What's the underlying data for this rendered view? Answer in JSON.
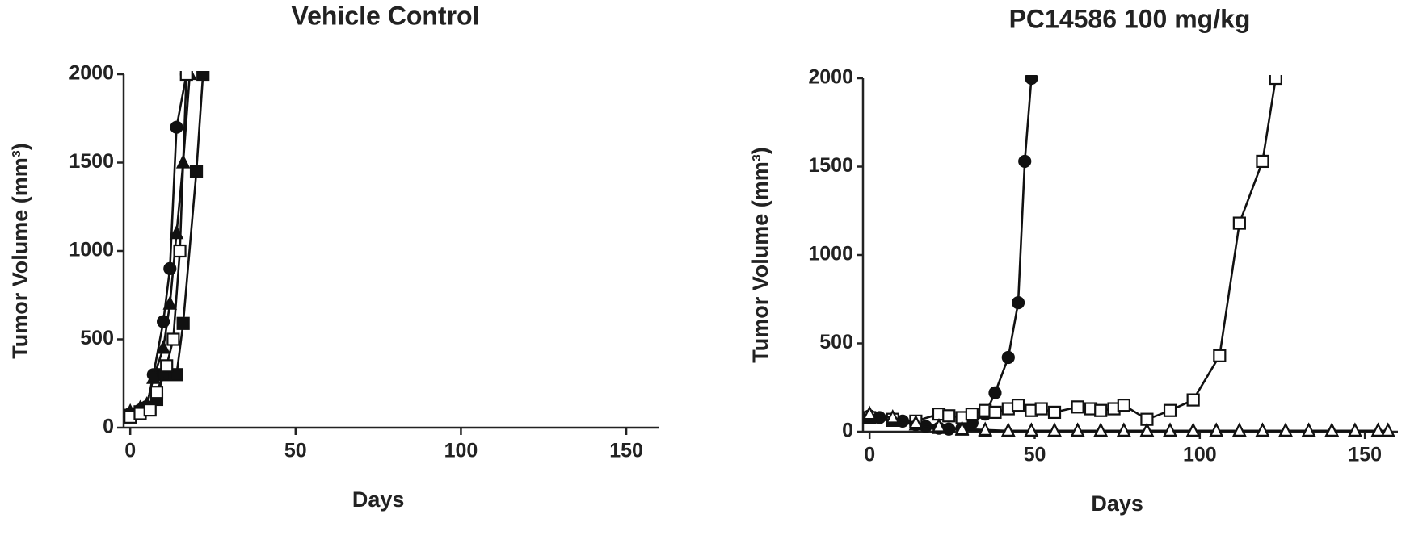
{
  "chart_data": [
    {
      "type": "line",
      "title": "Vehicle Control",
      "x_label": "Days",
      "y_label": "Tumor Volume (mm³)",
      "xlim": [
        -2,
        160
      ],
      "xticks": [
        0,
        50,
        100,
        150
      ],
      "ylim": [
        0,
        2000
      ],
      "yticks": [
        0,
        500,
        1000,
        1500,
        2000
      ],
      "series": [
        {
          "marker": "circle",
          "color": "#111111",
          "x": [
            0,
            3,
            5,
            7,
            10,
            12,
            14,
            17
          ],
          "values": [
            80,
            100,
            120,
            300,
            600,
            900,
            1700,
            2000
          ]
        },
        {
          "marker": "square",
          "color": "#111111",
          "x": [
            0,
            3,
            5,
            8,
            10,
            14,
            16,
            20,
            22
          ],
          "values": [
            70,
            90,
            110,
            160,
            300,
            300,
            590,
            1450,
            2000
          ]
        },
        {
          "marker": "triangle",
          "color": "#111111",
          "x": [
            0,
            3,
            5,
            7,
            10,
            12,
            14,
            16,
            18
          ],
          "values": [
            90,
            110,
            130,
            280,
            450,
            700,
            1100,
            1500,
            2000
          ]
        },
        {
          "marker": "open-square",
          "color": "#111111",
          "x": [
            0,
            3,
            6,
            8,
            11,
            13,
            15,
            17
          ],
          "values": [
            60,
            80,
            100,
            200,
            350,
            500,
            1000,
            2000
          ]
        }
      ]
    },
    {
      "type": "line",
      "title": "PC14586 100 mg/kg",
      "x_label": "Days",
      "y_label": "Tumor Volume (mm³)",
      "xlim": [
        -2,
        160
      ],
      "xticks": [
        0,
        50,
        100,
        150
      ],
      "ylim": [
        0,
        2000
      ],
      "yticks": [
        0,
        500,
        1000,
        1500,
        2000
      ],
      "series": [
        {
          "marker": "circle",
          "color": "#111111",
          "x": [
            0,
            3,
            7,
            10,
            14,
            17,
            21,
            24,
            28,
            31,
            35,
            38,
            42,
            45,
            47,
            49
          ],
          "values": [
            90,
            80,
            70,
            60,
            40,
            30,
            20,
            15,
            20,
            50,
            100,
            220,
            420,
            730,
            1530,
            2000
          ]
        },
        {
          "marker": "open-square",
          "color": "#111111",
          "x": [
            0,
            7,
            14,
            21,
            24,
            28,
            31,
            35,
            38,
            42,
            45,
            49,
            52,
            56,
            63,
            67,
            70,
            74,
            77,
            84,
            91,
            98,
            106,
            112,
            119,
            123
          ],
          "values": [
            80,
            70,
            60,
            100,
            90,
            80,
            100,
            120,
            110,
            130,
            150,
            120,
            130,
            110,
            140,
            130,
            120,
            130,
            150,
            70,
            120,
            180,
            430,
            1180,
            1530,
            2000
          ]
        },
        {
          "marker": "triangle",
          "color": "#111111",
          "x": [
            0,
            7,
            14,
            21,
            28,
            35,
            42,
            49,
            56,
            63,
            70,
            77,
            84,
            91,
            98,
            105,
            112,
            119,
            126,
            133,
            140,
            147,
            154,
            157
          ],
          "values": [
            80,
            60,
            40,
            20,
            10,
            5,
            5,
            5,
            5,
            5,
            5,
            5,
            5,
            5,
            5,
            5,
            5,
            5,
            5,
            5,
            5,
            5,
            5,
            5
          ]
        },
        {
          "marker": "open-triangle",
          "color": "#111111",
          "x": [
            0,
            7,
            14,
            21,
            28,
            35,
            42,
            49,
            56,
            63,
            70,
            77,
            84,
            91,
            98,
            105,
            112,
            119,
            126,
            133,
            140,
            147,
            154,
            157
          ],
          "values": [
            100,
            80,
            50,
            30,
            15,
            10,
            5,
            5,
            5,
            5,
            5,
            5,
            5,
            5,
            5,
            5,
            5,
            5,
            5,
            5,
            5,
            5,
            5,
            5
          ]
        }
      ]
    }
  ]
}
